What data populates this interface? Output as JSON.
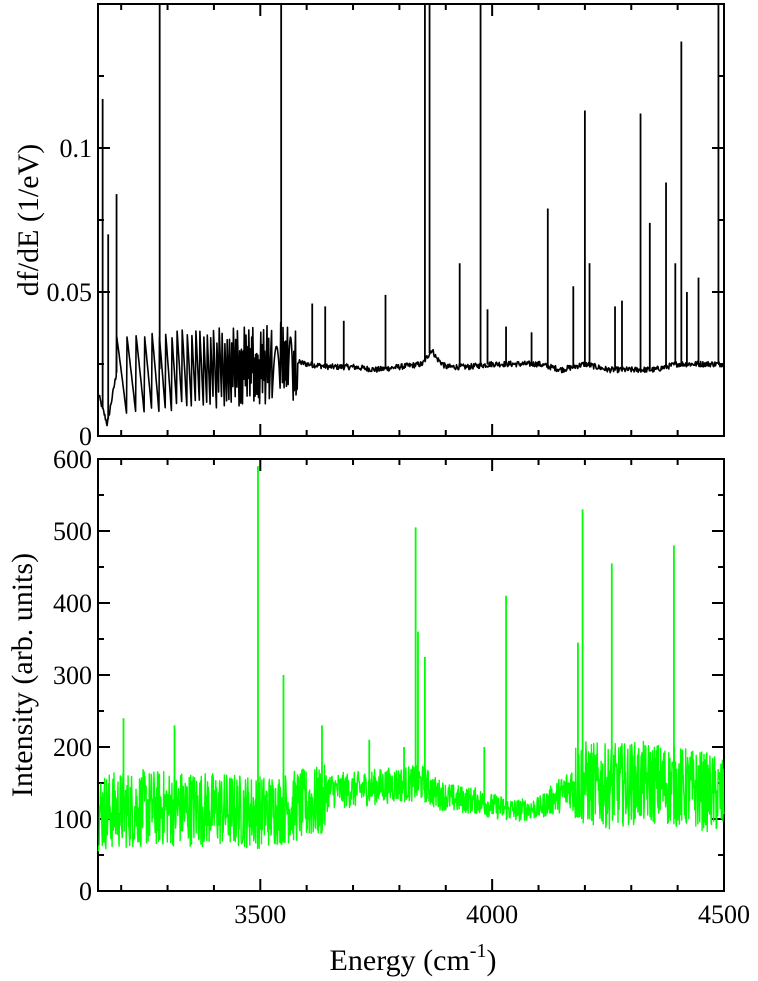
{
  "chart_data": [
    {
      "type": "line",
      "panel": "top",
      "ylabel": "df/dE (1/eV)",
      "xlim": [
        3150,
        4500
      ],
      "ylim": [
        0,
        0.15
      ],
      "x_ticks": [
        3500,
        4000,
        4500
      ],
      "y_ticks": [
        0,
        0.05,
        0.1
      ],
      "y_tick_labels": [
        "0",
        "0.05",
        "0.1"
      ],
      "show_x_tick_labels": false,
      "grid": false,
      "color": "#000000",
      "series": [
        {
          "background": [
            [
              3150,
              0.015
            ],
            [
              3170,
              0.004
            ],
            [
              3190,
              0.022
            ],
            [
              3210,
              0.028
            ],
            [
              3230,
              0.03
            ],
            [
              3260,
              0.025
            ],
            [
              3300,
              0.022
            ],
            [
              3350,
              0.024
            ],
            [
              3420,
              0.026
            ],
            [
              3500,
              0.026
            ],
            [
              3570,
              0.026
            ],
            [
              3600,
              0.025
            ],
            [
              3650,
              0.024
            ],
            [
              3700,
              0.024
            ],
            [
              3750,
              0.023
            ],
            [
              3800,
              0.024
            ],
            [
              3850,
              0.025
            ],
            [
              3870,
              0.03
            ],
            [
              3880,
              0.027
            ],
            [
              3900,
              0.024
            ],
            [
              3950,
              0.024
            ],
            [
              4000,
              0.025
            ],
            [
              4050,
              0.025
            ],
            [
              4100,
              0.025
            ],
            [
              4150,
              0.023
            ],
            [
              4200,
              0.025
            ],
            [
              4250,
              0.023
            ],
            [
              4300,
              0.023
            ],
            [
              4350,
              0.023
            ],
            [
              4400,
              0.025
            ],
            [
              4450,
              0.025
            ],
            [
              4500,
              0.025
            ]
          ],
          "sawtooth_region": [
            3190,
            3580
          ],
          "peaks": [
            [
              3160,
              0.117
            ],
            [
              3172,
              0.07
            ],
            [
              3190,
              0.084
            ],
            [
              3283,
              0.15
            ],
            [
              3545,
              0.15
            ],
            [
              3612,
              0.046
            ],
            [
              3640,
              0.045
            ],
            [
              3680,
              0.04
            ],
            [
              3770,
              0.049
            ],
            [
              3855,
              0.15
            ],
            [
              3865,
              0.15
            ],
            [
              3930,
              0.06
            ],
            [
              3975,
              0.15
            ],
            [
              3990,
              0.044
            ],
            [
              4030,
              0.038
            ],
            [
              4085,
              0.036
            ],
            [
              4120,
              0.079
            ],
            [
              4175,
              0.052
            ],
            [
              4200,
              0.113
            ],
            [
              4210,
              0.06
            ],
            [
              4265,
              0.045
            ],
            [
              4280,
              0.047
            ],
            [
              4320,
              0.112
            ],
            [
              4340,
              0.074
            ],
            [
              4375,
              0.088
            ],
            [
              4395,
              0.06
            ],
            [
              4408,
              0.137
            ],
            [
              4420,
              0.05
            ],
            [
              4445,
              0.055
            ],
            [
              4488,
              0.15
            ]
          ]
        }
      ]
    },
    {
      "type": "line",
      "panel": "bottom",
      "xlabel": "Energy (cm",
      "xlabel_sup": "-1",
      "xlabel_close": ")",
      "ylabel": "Intensity (arb. units)",
      "xlim": [
        3150,
        4500
      ],
      "ylim": [
        0,
        600
      ],
      "x_ticks": [
        3500,
        4000,
        4500
      ],
      "x_tick_labels": [
        "3500",
        "4000",
        "4500"
      ],
      "y_ticks": [
        0,
        100,
        200,
        300,
        400,
        500,
        600
      ],
      "y_tick_labels": [
        "0",
        "100",
        "200",
        "300",
        "400",
        "500",
        "600"
      ],
      "grid": false,
      "color": "#00ff00",
      "series": [
        {
          "baseline": [
            [
              3150,
              110
            ],
            [
              3250,
              115
            ],
            [
              3350,
              115
            ],
            [
              3450,
              112
            ],
            [
              3500,
              110
            ],
            [
              3550,
              115
            ],
            [
              3600,
              120
            ],
            [
              3640,
              125
            ],
            [
              3645,
              140
            ],
            [
              3700,
              140
            ],
            [
              3750,
              145
            ],
            [
              3800,
              148
            ],
            [
              3850,
              150
            ],
            [
              3880,
              135
            ],
            [
              3920,
              128
            ],
            [
              3970,
              125
            ],
            [
              4000,
              118
            ],
            [
              4050,
              112
            ],
            [
              4100,
              115
            ],
            [
              4150,
              135
            ],
            [
              4180,
              150
            ],
            [
              4200,
              150
            ],
            [
              4250,
              145
            ],
            [
              4300,
              150
            ],
            [
              4350,
              150
            ],
            [
              4400,
              145
            ],
            [
              4450,
              140
            ],
            [
              4500,
              130
            ]
          ],
          "noise_amplitude": [
            [
              3150,
              55
            ],
            [
              3640,
              50
            ],
            [
              3645,
              25
            ],
            [
              3860,
              25
            ],
            [
              3900,
              20
            ],
            [
              4100,
              15
            ],
            [
              4170,
              30
            ],
            [
              4180,
              60
            ],
            [
              4500,
              55
            ]
          ],
          "peaks": [
            [
              3205,
              240
            ],
            [
              3315,
              230
            ],
            [
              3495,
              590
            ],
            [
              3550,
              300
            ],
            [
              3633,
              230
            ],
            [
              3735,
              210
            ],
            [
              3810,
              200
            ],
            [
              3835,
              505
            ],
            [
              3840,
              360
            ],
            [
              3855,
              325
            ],
            [
              3983,
              200
            ],
            [
              4030,
              410
            ],
            [
              4185,
              345
            ],
            [
              4195,
              530
            ],
            [
              4258,
              455
            ],
            [
              4392,
              480
            ]
          ]
        }
      ]
    }
  ]
}
